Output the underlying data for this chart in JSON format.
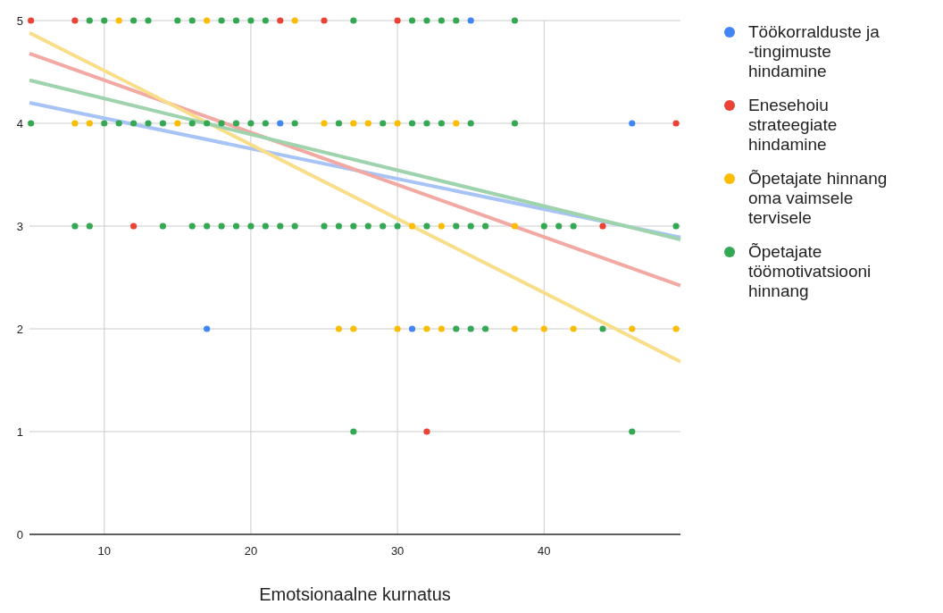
{
  "chart_data": {
    "type": "scatter",
    "xlabel": "Emotsionaalne kurnatus",
    "xlim": [
      4.9,
      49.3
    ],
    "xticks": [
      10,
      20,
      30,
      40
    ],
    "ylim": [
      0,
      5
    ],
    "yticks": [
      0,
      1,
      2,
      3,
      4,
      5
    ],
    "grid": true,
    "legend": "right",
    "marker": "circle",
    "series": [
      {
        "name": "Töökorralduste ja -tingimuste hindamine",
        "color": "#4285f4",
        "x": [
          35,
          22,
          46,
          17,
          31
        ],
        "values": [
          5,
          4,
          4,
          2,
          2
        ]
      },
      {
        "name": "Enesehoiu strateegiate hindamine",
        "color": "#ea4335",
        "x": [
          5,
          8,
          22,
          25,
          30,
          49,
          12,
          44,
          32
        ],
        "values": [
          5,
          5,
          5,
          5,
          5,
          4,
          3,
          3,
          1
        ]
      },
      {
        "name": "Õpetajate hinnang oma vaimsele tervisele",
        "color": "#fbbc04",
        "x": [
          11,
          17,
          23,
          8,
          9,
          15,
          25,
          27,
          28,
          30,
          34,
          31,
          33,
          38,
          26,
          27,
          30,
          32,
          33,
          38,
          40,
          42,
          46,
          49
        ],
        "values": [
          5,
          5,
          5,
          4,
          4,
          4,
          4,
          4,
          4,
          4,
          4,
          3,
          3,
          3,
          2,
          2,
          2,
          2,
          2,
          2,
          2,
          2,
          2,
          2
        ]
      },
      {
        "name": "Õpetajate töömotivatsiooni hinnang",
        "color": "#34a853",
        "x": [
          9,
          10,
          12,
          13,
          15,
          16,
          18,
          19,
          20,
          21,
          27,
          31,
          32,
          33,
          34,
          38,
          5,
          10,
          11,
          12,
          13,
          14,
          16,
          17,
          18,
          19,
          20,
          21,
          23,
          26,
          29,
          31,
          32,
          33,
          35,
          38,
          8,
          9,
          14,
          16,
          17,
          18,
          19,
          20,
          21,
          22,
          23,
          25,
          26,
          27,
          28,
          29,
          30,
          32,
          34,
          35,
          36,
          40,
          41,
          42,
          49,
          34,
          35,
          36,
          44,
          27,
          46
        ],
        "values": [
          5,
          5,
          5,
          5,
          5,
          5,
          5,
          5,
          5,
          5,
          5,
          5,
          5,
          5,
          5,
          5,
          4,
          4,
          4,
          4,
          4,
          4,
          4,
          4,
          4,
          4,
          4,
          4,
          4,
          4,
          4,
          4,
          4,
          4,
          4,
          4,
          3,
          3,
          3,
          3,
          3,
          3,
          3,
          3,
          3,
          3,
          3,
          3,
          3,
          3,
          3,
          3,
          3,
          3,
          3,
          3,
          3,
          3,
          3,
          3,
          3,
          2,
          2,
          2,
          2,
          1,
          1
        ]
      },
      {
        "type": "line",
        "marker": "none",
        "color": "#a8c3f5",
        "x": [
          4.9,
          49.3
        ],
        "values": [
          4.2,
          2.89
        ]
      },
      {
        "type": "line",
        "marker": "none",
        "color": "#f2a9a3",
        "x": [
          4.9,
          49.3
        ],
        "values": [
          4.68,
          2.42
        ]
      },
      {
        "type": "line",
        "marker": "none",
        "color": "#f9de8a",
        "x": [
          4.9,
          49.3
        ],
        "values": [
          4.88,
          1.68
        ]
      },
      {
        "type": "line",
        "marker": "none",
        "color": "#9fd3ad",
        "x": [
          4.9,
          49.3
        ],
        "values": [
          4.42,
          2.87
        ]
      }
    ]
  }
}
